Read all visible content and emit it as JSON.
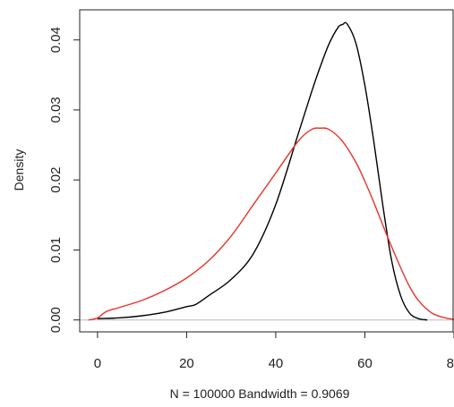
{
  "chart_data": {
    "type": "line",
    "title": "",
    "xlabel": "N = 100000   Bandwidth = 0.9069",
    "ylabel": "Density",
    "xlim": [
      -4,
      80
    ],
    "ylim": [
      -0.0017,
      0.0443
    ],
    "x_ticks": [
      {
        "value": 0,
        "label": "0"
      },
      {
        "value": 20,
        "label": "20"
      },
      {
        "value": 40,
        "label": "40"
      },
      {
        "value": 60,
        "label": "60"
      },
      {
        "value": 80,
        "label": "80"
      }
    ],
    "y_ticks": [
      {
        "value": 0.0,
        "label": "0.00"
      },
      {
        "value": 0.01,
        "label": "0.01"
      },
      {
        "value": 0.02,
        "label": "0.02"
      },
      {
        "value": 0.03,
        "label": "0.03"
      },
      {
        "value": 0.04,
        "label": "0.04"
      }
    ],
    "zero_line": true,
    "grid": false,
    "legend": "none",
    "series": [
      {
        "color": "#000000",
        "x": [
          0,
          5,
          10,
          15,
          20,
          22,
          25,
          30,
          35,
          40,
          45,
          48,
          50,
          52,
          54,
          55,
          56,
          58,
          60,
          62,
          64,
          66,
          68,
          70,
          72,
          74
        ],
        "y": [
          0.0002,
          0.0003,
          0.0006,
          0.0011,
          0.0019,
          0.0022,
          0.0035,
          0.0058,
          0.0095,
          0.0165,
          0.0265,
          0.0325,
          0.0362,
          0.0395,
          0.0418,
          0.0422,
          0.0423,
          0.0395,
          0.0335,
          0.0255,
          0.0165,
          0.0085,
          0.0035,
          0.001,
          0.0002,
          0.0
        ]
      },
      {
        "color": "#e8332a",
        "x": [
          -2,
          0,
          2,
          5,
          10,
          15,
          20,
          25,
          30,
          35,
          40,
          45,
          48,
          50,
          52,
          55,
          58,
          60,
          62,
          65,
          68,
          70,
          72,
          75,
          78,
          80
        ],
        "y": [
          0.0,
          0.0003,
          0.0012,
          0.0018,
          0.0028,
          0.0042,
          0.006,
          0.0085,
          0.012,
          0.0165,
          0.021,
          0.0255,
          0.0272,
          0.0274,
          0.0272,
          0.0255,
          0.0225,
          0.0198,
          0.0168,
          0.012,
          0.0075,
          0.0048,
          0.0028,
          0.001,
          0.0003,
          0.0001
        ]
      }
    ]
  }
}
